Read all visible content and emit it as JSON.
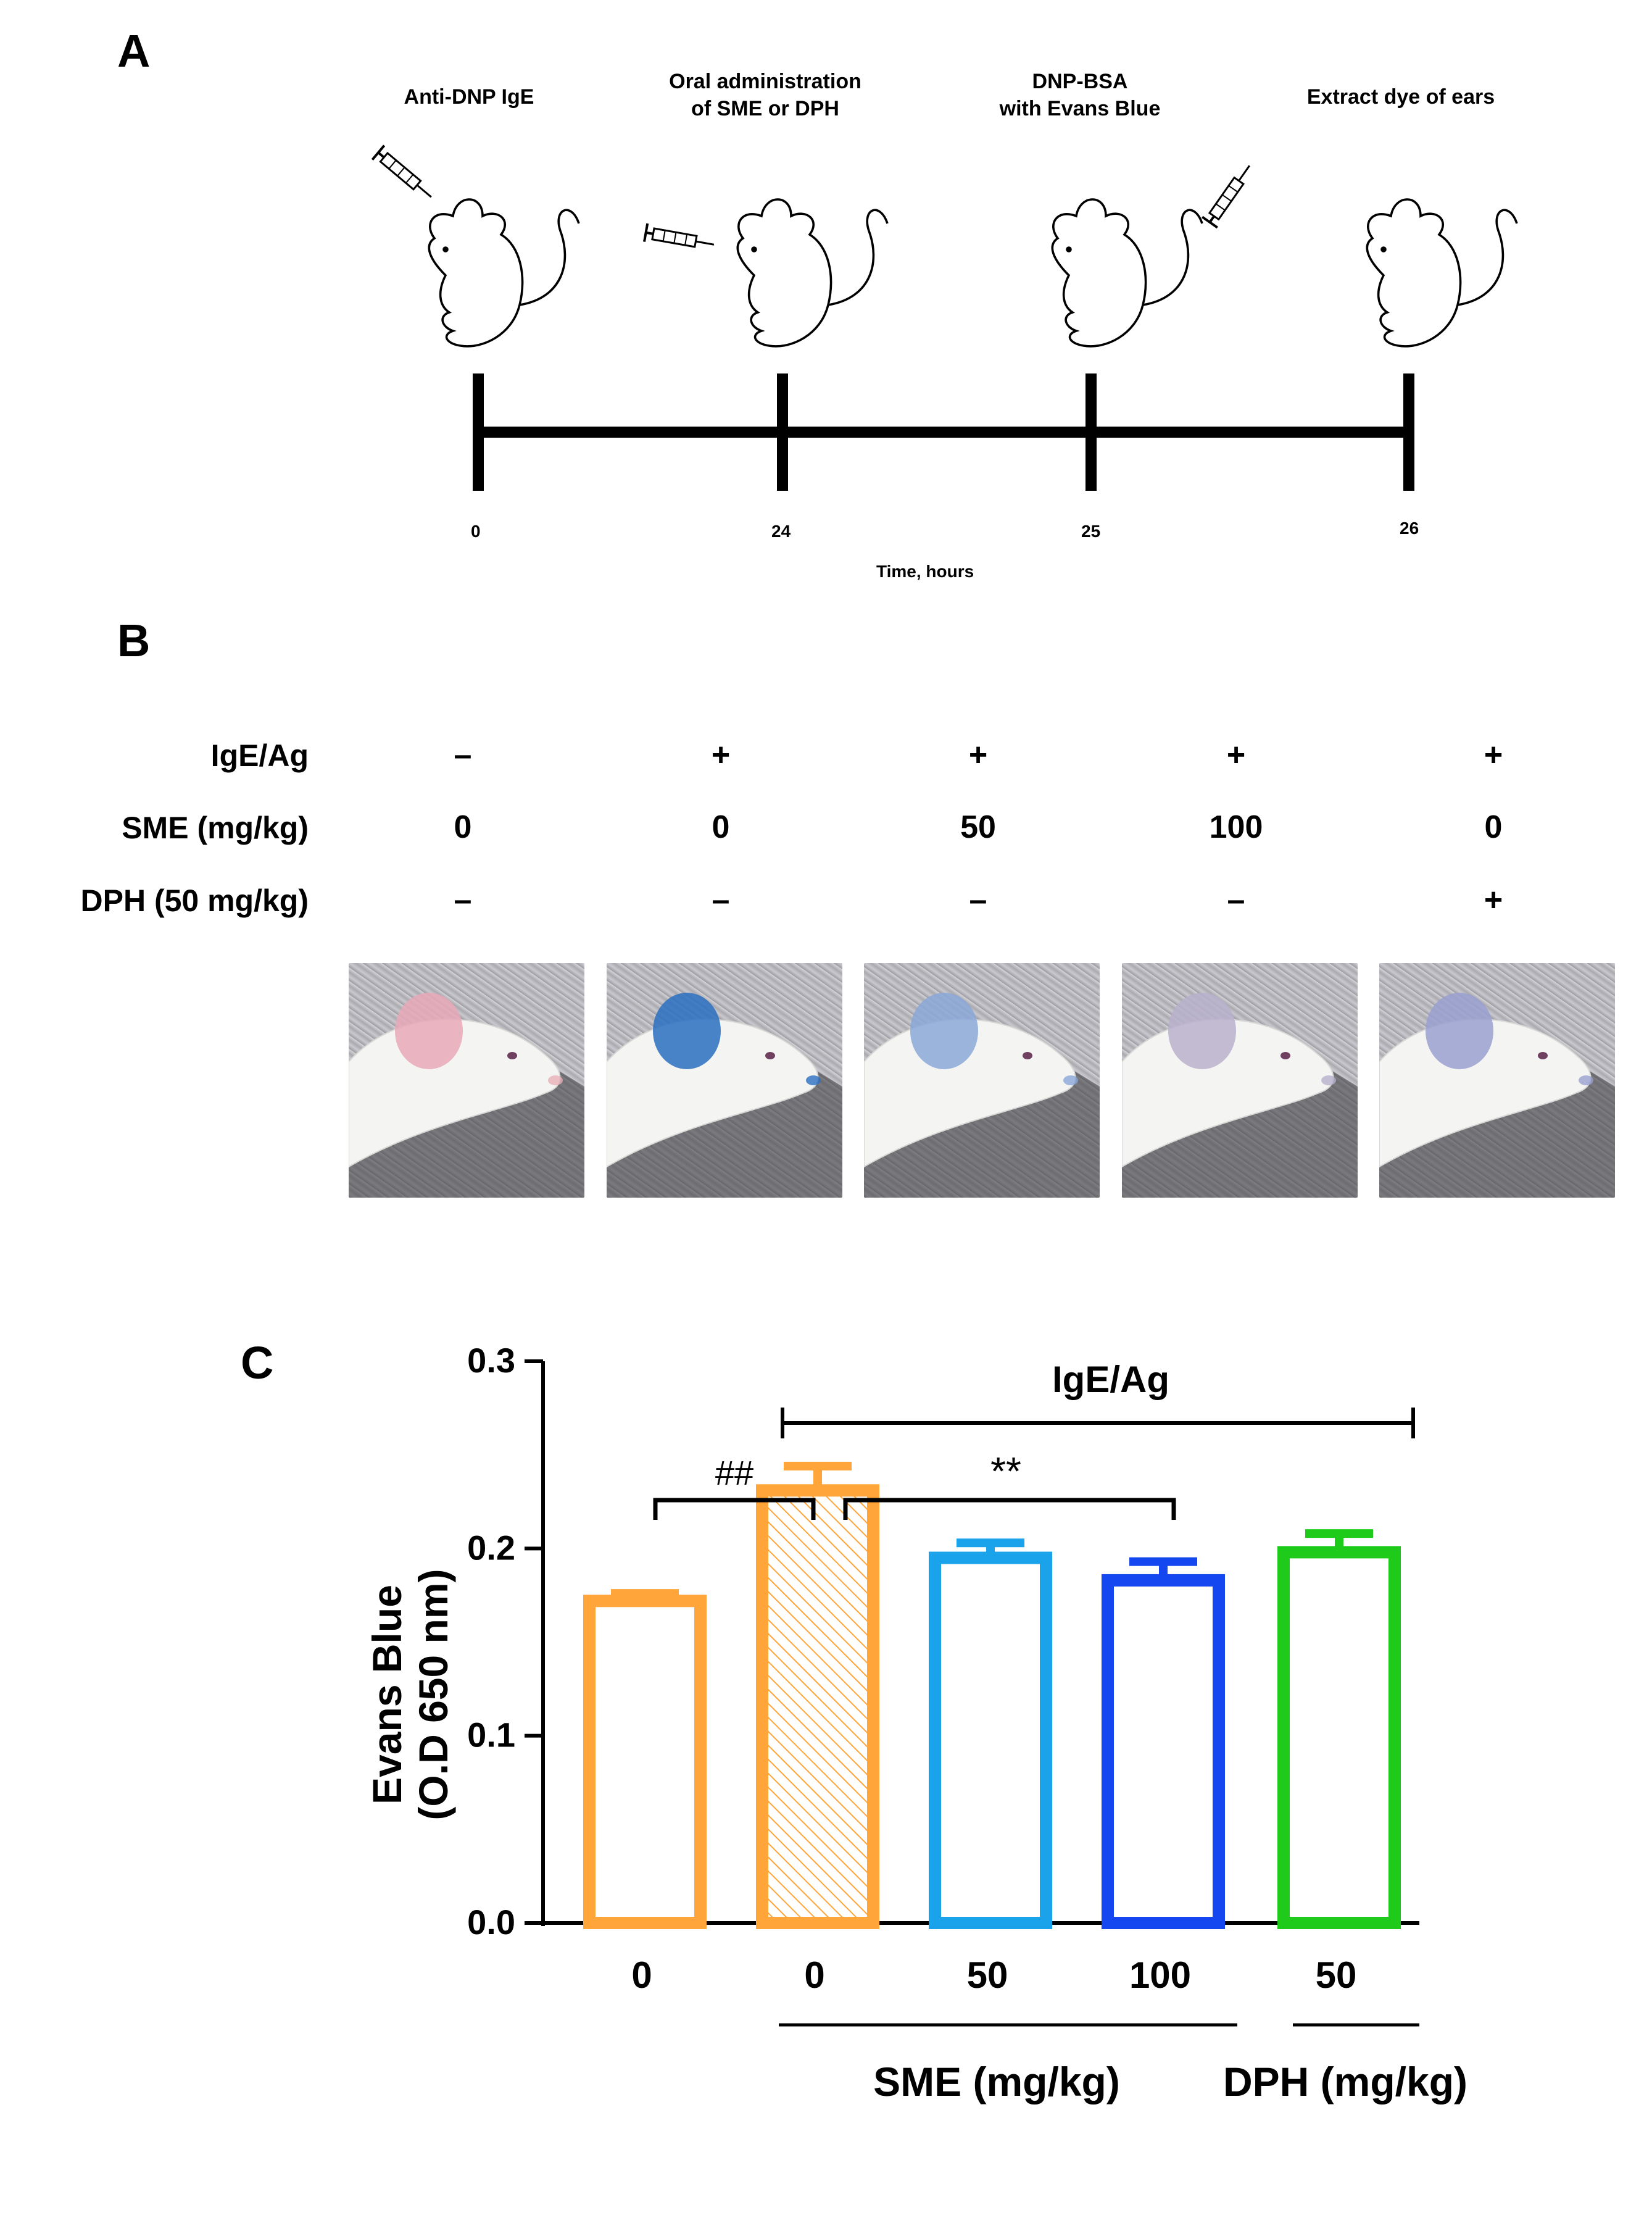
{
  "panel_a": {
    "letter": "A",
    "steps": [
      {
        "label": "Anti-DNP IgE",
        "time": "0"
      },
      {
        "label": "Oral administration\nof SME or DPH",
        "time": "24"
      },
      {
        "label": "DNP-BSA\nwith Evans Blue",
        "time": "25"
      },
      {
        "label": "Extract dye of ears",
        "time": "26"
      }
    ],
    "axis_label": "Time, hours"
  },
  "panel_b": {
    "letter": "B",
    "rows": [
      {
        "label": "IgE/Ag",
        "values": [
          "–",
          "+",
          "+",
          "+",
          "+"
        ]
      },
      {
        "label": "SME (mg/kg)",
        "values": [
          "0",
          "0",
          "50",
          "100",
          "0"
        ]
      },
      {
        "label": "DPH (50 mg/kg)",
        "values": [
          "–",
          "–",
          "–",
          "–",
          "+"
        ]
      }
    ],
    "photos": [
      {
        "ear_color": "#e8a8b8"
      },
      {
        "ear_color": "#2a6fc0"
      },
      {
        "ear_color": "#8aa8d8"
      },
      {
        "ear_color": "#b8b0cc"
      },
      {
        "ear_color": "#9aa0d0"
      }
    ]
  },
  "panel_c": {
    "letter": "C",
    "bracket_igeag": "IgE/Ag",
    "sig_hash": "##",
    "sig_star": "**",
    "group_sme": "SME (mg/kg)",
    "group_dph": "DPH (mg/kg)"
  },
  "chart_data": {
    "type": "bar",
    "categories": [
      "0",
      "0",
      "50",
      "100",
      "50"
    ],
    "values": [
      0.172,
      0.231,
      0.195,
      0.183,
      0.198
    ],
    "errors": [
      0.004,
      0.013,
      0.008,
      0.01,
      0.01
    ],
    "colors": [
      "#FFA53A",
      "#FFA53A",
      "#1AA3EA",
      "#1447F0",
      "#1FCB1A"
    ],
    "hatched": [
      false,
      true,
      false,
      false,
      false
    ],
    "ylabel": "Evans Blue\n(O.D 650 nm)",
    "ylim": [
      0,
      0.3
    ],
    "yticks": [
      "0.0",
      "0.1",
      "0.2",
      "0.3"
    ],
    "ytick_values": [
      0,
      0.1,
      0.2,
      0.3
    ]
  }
}
